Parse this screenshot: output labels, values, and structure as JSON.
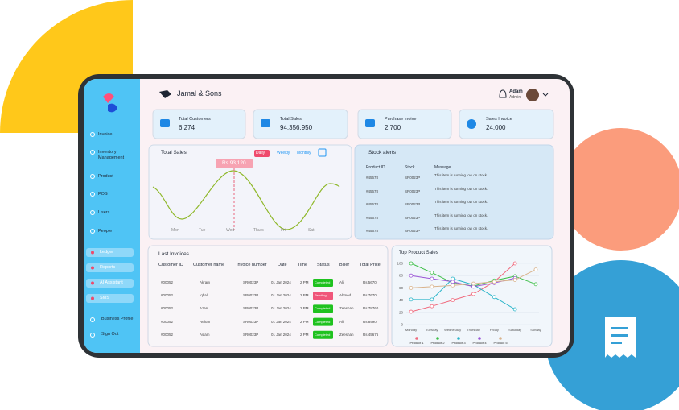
{
  "header": {
    "brand": "Jamal & Sons",
    "user": "Adam",
    "role": "Admin"
  },
  "sidebar": {
    "items": [
      "Invoice",
      "Inventory Management",
      "Product",
      "POS",
      "Users",
      "People"
    ],
    "pills": [
      "Ledger",
      "Reports",
      "AI Assistant",
      "SMS"
    ],
    "footer": [
      "Business Profile",
      "Sign Out"
    ]
  },
  "stats": [
    {
      "label": "Total Customers",
      "value": "6,274"
    },
    {
      "label": "Total Sales",
      "value": "94,356,950"
    },
    {
      "label": "Purchase Inoive",
      "value": "2,700"
    },
    {
      "label": "Sales Invoice",
      "value": "24,000"
    }
  ],
  "total_sales": {
    "title": "Total Sales",
    "tabs": [
      "Daily",
      "Weekly",
      "Monthly"
    ],
    "tooltip": "Rs.93,120",
    "days": [
      "Mon",
      "Tue",
      "Wed",
      "Thurs",
      "Fri",
      "Sat"
    ]
  },
  "stock_alerts": {
    "title": "Stock alerts",
    "columns": [
      "Product ID",
      "Stock",
      "Message"
    ],
    "rows": [
      [
        "#45678",
        "SR0023P",
        "This item is running low on stock."
      ],
      [
        "#45678",
        "SR0023P",
        "This item is running low on stock."
      ],
      [
        "#45678",
        "SR0023P",
        "This item is running low on stock."
      ],
      [
        "#45678",
        "SR0023P",
        "This item is running low on stock."
      ],
      [
        "#45678",
        "SR0023P",
        "This item is running low on stock."
      ]
    ]
  },
  "invoices": {
    "title": "Last Invoices",
    "columns": [
      "Customer ID",
      "Customer name",
      "Invoice number",
      "Date",
      "Time",
      "Status",
      "Biller",
      "Total Price"
    ],
    "rows": [
      [
        "#00052",
        "Akram",
        "SR0023P",
        "01 Jan 2024",
        "2 PM",
        "Completed",
        "Ali",
        "Rs.5670"
      ],
      [
        "#00052",
        "Iqbal",
        "SR0023P",
        "01 Jan 2024",
        "2 PM",
        "Pending",
        "Ahmed",
        "Rs.7670"
      ],
      [
        "#00052",
        "Azan",
        "SR0023P",
        "01 Jan 2024",
        "2 PM",
        "Completed",
        "Zeeshan",
        "Rs.78760"
      ],
      [
        "#00052",
        "Rehan",
        "SR0023P",
        "01 Jan 2024",
        "2 PM",
        "Completed",
        "Ali",
        "Rs.8990"
      ],
      [
        "#00052",
        "Aslam",
        "SR0023P",
        "01 Jan 2024",
        "2 PM",
        "Completed",
        "Zeeshan",
        "Rs.45676"
      ]
    ],
    "status_colors": [
      "#1fc21f",
      "#f0557a",
      "#1fc21f",
      "#1fc21f",
      "#1fc21f"
    ]
  },
  "chart_data": {
    "type": "line",
    "title": "Top Product Sales",
    "categories": [
      "Monday",
      "Tuesday",
      "Wednesday",
      "Thursday",
      "Friday",
      "Saturday",
      "Sunday"
    ],
    "series": [
      {
        "name": "Product 1",
        "color": "#f06b7e",
        "values": [
          21,
          30,
          40,
          50,
          70,
          100,
          null
        ]
      },
      {
        "name": "Product 2",
        "color": "#3fbf4a",
        "values": [
          100,
          85,
          68,
          63,
          72,
          79,
          66
        ]
      },
      {
        "name": "Product 3",
        "color": "#2bb5c9",
        "values": [
          41,
          41,
          75,
          65,
          45,
          25,
          null
        ]
      },
      {
        "name": "Product 4",
        "color": "#9a55d6",
        "values": [
          80,
          75,
          70,
          62,
          68,
          76,
          null
        ]
      },
      {
        "name": "Product 5",
        "color": "#d9b38c",
        "values": [
          60,
          62,
          64,
          67,
          70,
          73,
          90
        ]
      }
    ],
    "ylim": [
      0,
      100
    ],
    "yticks": [
      0,
      20,
      40,
      60,
      80,
      100
    ]
  }
}
